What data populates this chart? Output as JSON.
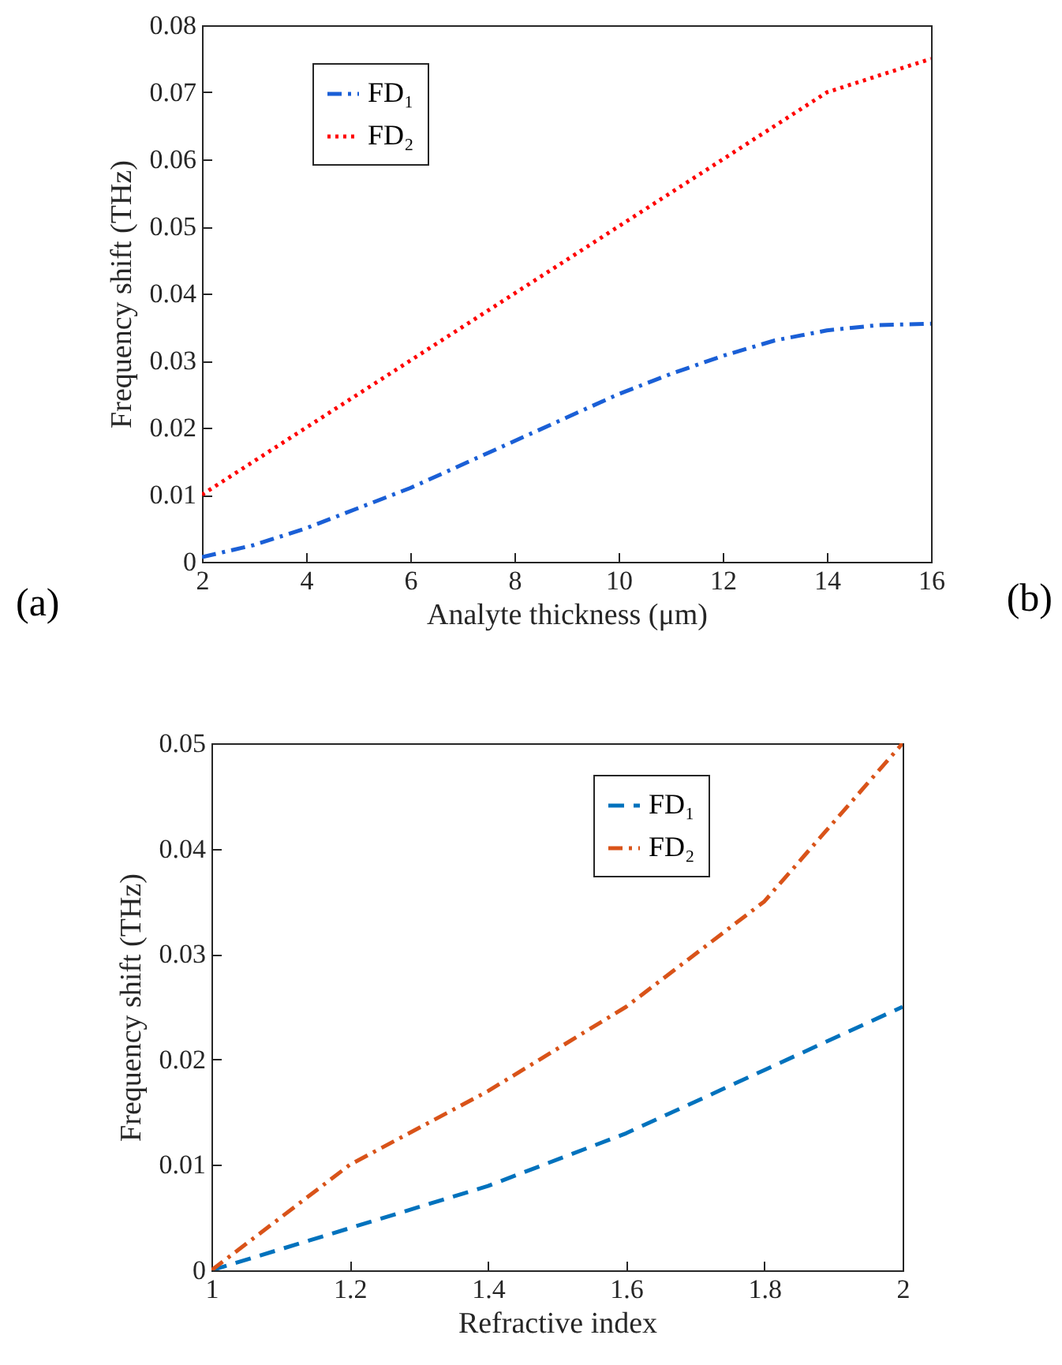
{
  "chart_data": [
    {
      "type": "line",
      "xlabel": "Analyte thickness (μm)",
      "ylabel": "Frequency shift (THz)",
      "xlim": [
        2,
        16
      ],
      "xticks": [
        2,
        4,
        6,
        8,
        10,
        12,
        14,
        16
      ],
      "ylim": [
        0,
        0.08
      ],
      "yticks": [
        0,
        0.01,
        0.02,
        0.03,
        0.04,
        0.05,
        0.06,
        0.07,
        0.08
      ],
      "legend": "top left",
      "annotations": [
        "(a)"
      ],
      "series": [
        {
          "name": "FD₁",
          "color": "#1a5fd6",
          "line_style": "dashdot",
          "x": [
            2,
            3,
            4,
            5,
            6,
            7,
            8,
            9,
            10,
            11,
            12,
            13,
            14,
            15,
            16
          ],
          "values": [
            0.0007,
            0.0025,
            0.005,
            0.008,
            0.011,
            0.0145,
            0.018,
            0.0215,
            0.025,
            0.028,
            0.0307,
            0.033,
            0.0345,
            0.0353,
            0.0355
          ]
        },
        {
          "name": "FD₂",
          "color": "#ff0000",
          "line_style": "dotted",
          "x": [
            2,
            14,
            16
          ],
          "values": [
            0.01,
            0.07,
            0.075
          ]
        }
      ]
    },
    {
      "type": "line",
      "xlabel": "Refractive index",
      "ylabel": "Frequency shift (THz)",
      "xlim": [
        1,
        2
      ],
      "xticks": [
        1,
        1.2,
        1.4,
        1.6,
        1.8,
        2
      ],
      "ylim": [
        0,
        0.05
      ],
      "yticks": [
        0,
        0.01,
        0.02,
        0.03,
        0.04,
        0.05
      ],
      "legend": "top right",
      "annotations": [
        "(b)"
      ],
      "series": [
        {
          "name": "FD₁",
          "color": "#0072bd",
          "line_style": "dashed",
          "x": [
            1,
            1.2,
            1.4,
            1.6,
            1.8,
            2
          ],
          "values": [
            0,
            0.004,
            0.008,
            0.013,
            0.019,
            0.025
          ]
        },
        {
          "name": "FD₂",
          "color": "#d95319",
          "line_style": "dashdot",
          "x": [
            1,
            1.2,
            1.4,
            1.6,
            1.8,
            2
          ],
          "values": [
            0,
            0.01,
            0.017,
            0.025,
            0.035,
            0.05
          ]
        }
      ]
    }
  ]
}
